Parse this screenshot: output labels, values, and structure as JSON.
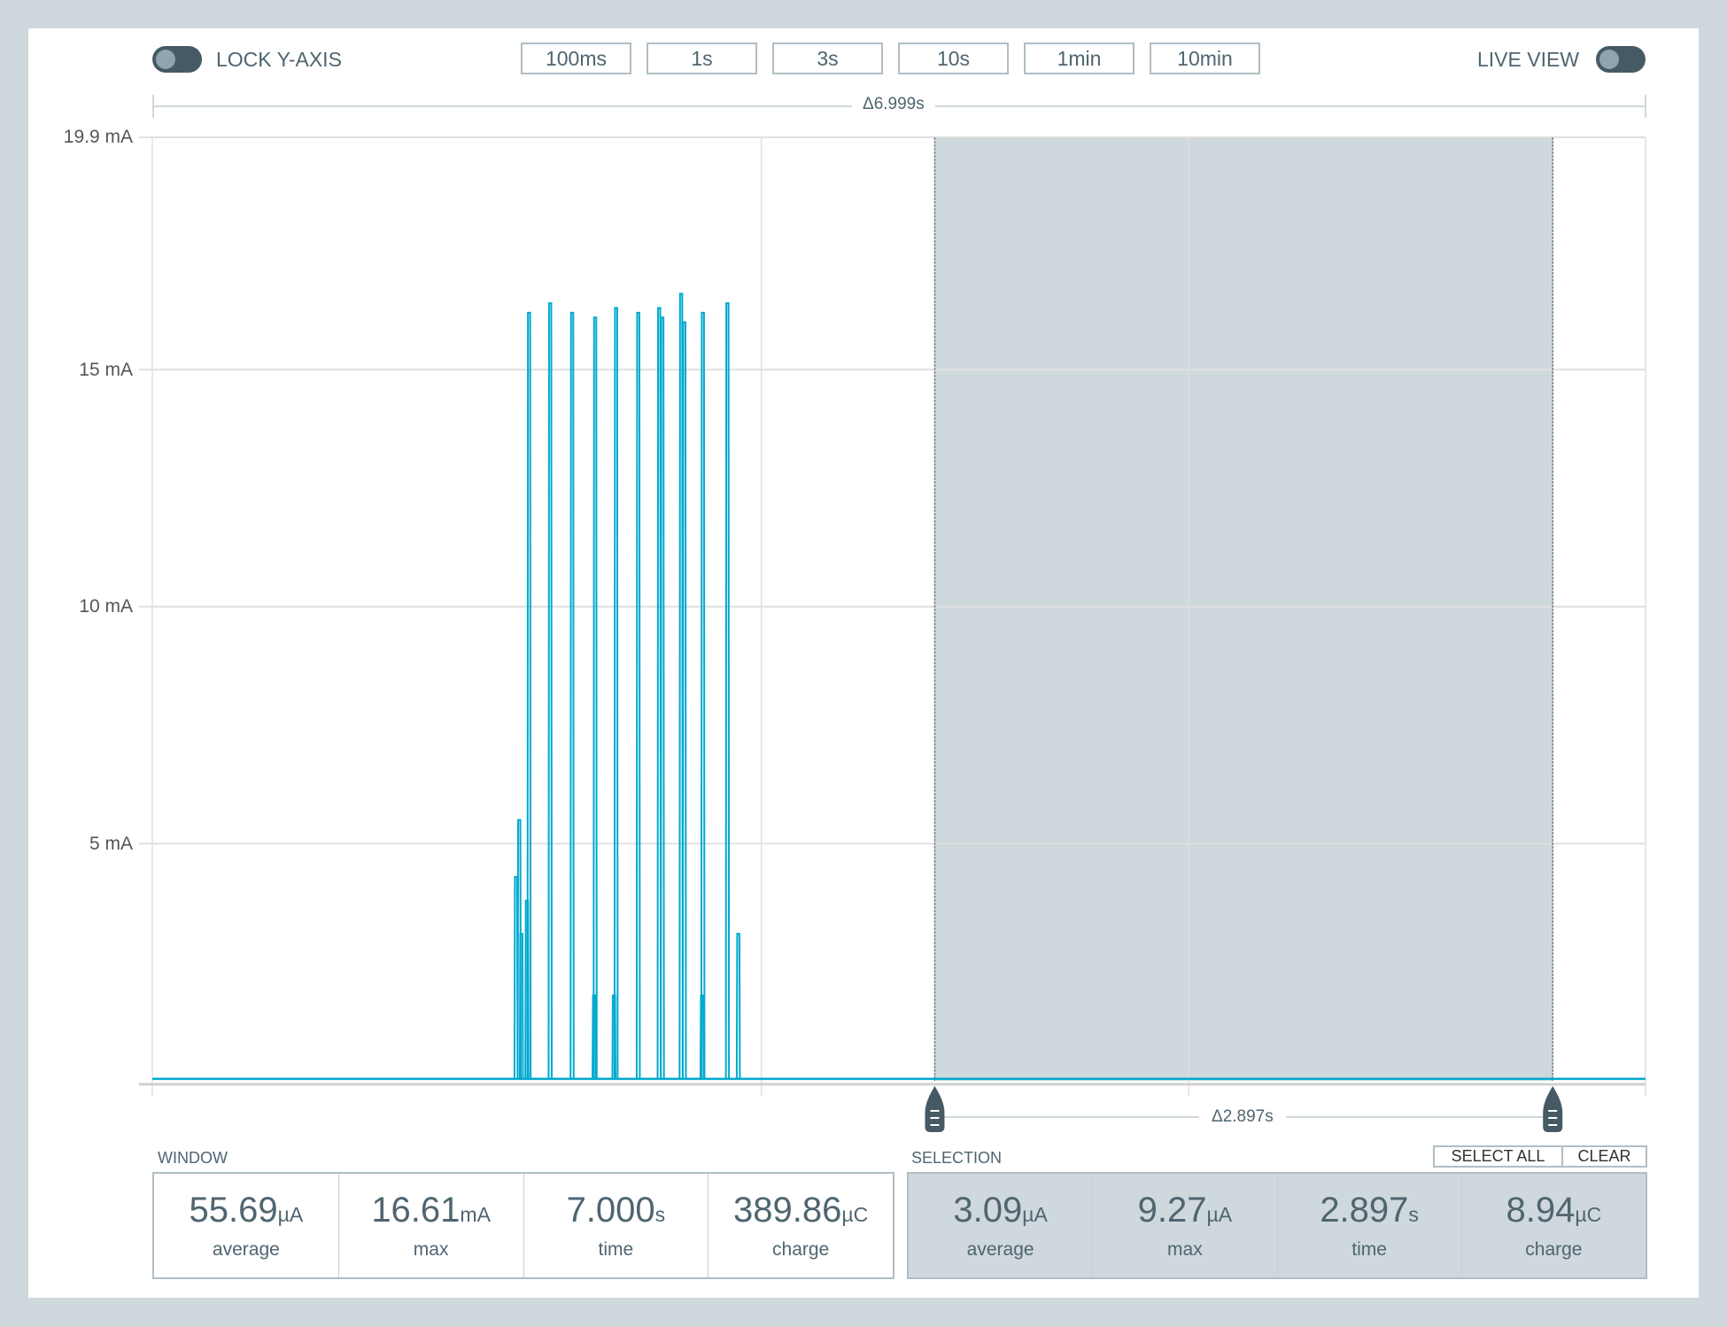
{
  "controls": {
    "lock_y_axis_label": "LOCK Y-AXIS",
    "lock_y_axis_on": false,
    "live_view_label": "LIVE VIEW",
    "live_view_on": false,
    "range_buttons": [
      "100ms",
      "1s",
      "3s",
      "10s",
      "1min",
      "10min"
    ]
  },
  "chart_data": {
    "type": "line",
    "window_delta_label": "Δ6.999s",
    "selection_delta_label": "Δ2.897s",
    "xlim": [
      0,
      7.0
    ],
    "ylim": [
      0,
      19.9
    ],
    "y_unit": "mA",
    "y_ticks": [
      {
        "value": 19.9,
        "label": "19.9 mA"
      },
      {
        "value": 15,
        "label": "15 mA"
      },
      {
        "value": 10,
        "label": "10 mA"
      },
      {
        "value": 5,
        "label": "5 mA"
      }
    ],
    "x_gridlines": [
      0,
      2.855,
      4.858,
      7.0
    ],
    "grid": true,
    "series_color": "#00a9ce",
    "baseline": 0.003,
    "spikes": [
      {
        "t": 1.704,
        "peak": 4.3
      },
      {
        "t": 1.719,
        "peak": 5.5
      },
      {
        "t": 1.729,
        "peak": 3.1
      },
      {
        "t": 1.755,
        "peak": 3.8
      },
      {
        "t": 1.765,
        "peak": 16.2
      },
      {
        "t": 1.864,
        "peak": 16.4
      },
      {
        "t": 1.967,
        "peak": 16.2
      },
      {
        "t": 2.07,
        "peak": 1.8
      },
      {
        "t": 2.075,
        "peak": 16.1
      },
      {
        "t": 2.163,
        "peak": 1.8
      },
      {
        "t": 2.173,
        "peak": 16.3
      },
      {
        "t": 2.277,
        "peak": 16.2
      },
      {
        "t": 2.375,
        "peak": 16.3
      },
      {
        "t": 2.39,
        "peak": 16.1
      },
      {
        "t": 2.478,
        "peak": 16.6
      },
      {
        "t": 2.493,
        "peak": 16.0
      },
      {
        "t": 2.576,
        "peak": 1.8
      },
      {
        "t": 2.58,
        "peak": 16.2
      },
      {
        "t": 2.695,
        "peak": 16.4
      },
      {
        "t": 2.746,
        "peak": 3.1
      }
    ],
    "selection": {
      "start": 3.668,
      "end": 6.565,
      "color": "#cfd8dc"
    }
  },
  "window": {
    "title": "WINDOW",
    "stats": [
      {
        "value": "55.69",
        "unit": "µA",
        "label": "average"
      },
      {
        "value": "16.61",
        "unit": "mA",
        "label": "max"
      },
      {
        "value": "7.000",
        "unit": "s",
        "label": "time"
      },
      {
        "value": "389.86",
        "unit": "µC",
        "label": "charge"
      }
    ]
  },
  "selection": {
    "title": "SELECTION",
    "select_all_label": "SELECT ALL",
    "clear_label": "CLEAR",
    "stats": [
      {
        "value": "3.09",
        "unit": "µA",
        "label": "average"
      },
      {
        "value": "9.27",
        "unit": "µA",
        "label": "max"
      },
      {
        "value": "2.897",
        "unit": "s",
        "label": "time"
      },
      {
        "value": "8.94",
        "unit": "µC",
        "label": "charge"
      }
    ]
  }
}
